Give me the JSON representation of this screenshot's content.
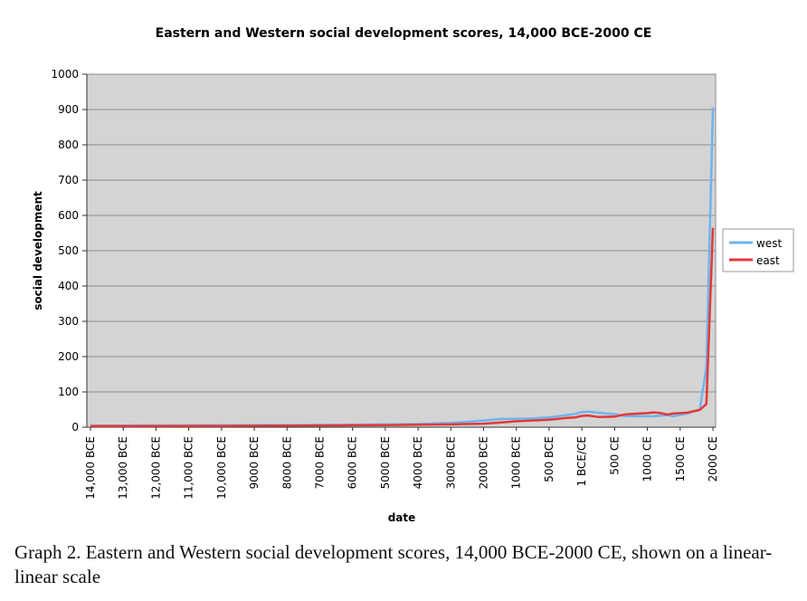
{
  "chart_data": {
    "type": "line",
    "title": "Eastern and Western social development scores, 14,000 BCE-2000 CE",
    "xlabel": "date",
    "ylabel": "social development",
    "ylim": [
      0,
      1000
    ],
    "yticks": [
      0,
      100,
      200,
      300,
      400,
      500,
      600,
      700,
      800,
      900,
      1000
    ],
    "grid": true,
    "legend_position": "right",
    "x_categories": [
      "14,000 BCE",
      "13,000 BCE",
      "12,000 BCE",
      "11,000 BCE",
      "10,000 BCE",
      "9000 BCE",
      "8000 BCE",
      "7000 BCE",
      "6000 BCE",
      "5000 BCE",
      "4000 BCE",
      "3000 BCE",
      "2000 BCE",
      "1000 BCE",
      "500 BCE",
      "1 BCE/CE",
      "500 CE",
      "1000 CE",
      "1500 CE",
      "2000 CE"
    ],
    "x_years": [
      -14000,
      -13000,
      -12000,
      -11000,
      -10000,
      -9000,
      -8000,
      -7000,
      -6000,
      -5000,
      -4000,
      -3000,
      -2000,
      -1000,
      -500,
      0,
      500,
      1000,
      1500,
      2000
    ],
    "series": [
      {
        "name": "west",
        "color": "#6fb4ec",
        "points": [
          [
            -14000,
            4.4
          ],
          [
            -13000,
            4.4
          ],
          [
            -12000,
            4.9
          ],
          [
            -11000,
            5.2
          ],
          [
            -10000,
            5.4
          ],
          [
            -9000,
            5.7
          ],
          [
            -8000,
            6
          ],
          [
            -7000,
            6.5
          ],
          [
            -6000,
            7
          ],
          [
            -5000,
            8
          ],
          [
            -4000,
            9
          ],
          [
            -3000,
            12
          ],
          [
            -2000,
            19
          ],
          [
            -1500,
            23
          ],
          [
            -1000,
            24
          ],
          [
            -750,
            25
          ],
          [
            -500,
            28
          ],
          [
            -250,
            34
          ],
          [
            -100,
            38
          ],
          [
            0,
            43
          ],
          [
            100,
            44
          ],
          [
            250,
            41
          ],
          [
            500,
            37
          ],
          [
            600,
            33
          ],
          [
            700,
            31
          ],
          [
            1000,
            31
          ],
          [
            1100,
            31
          ],
          [
            1200,
            33
          ],
          [
            1300,
            34
          ],
          [
            1400,
            31
          ],
          [
            1500,
            35
          ],
          [
            1600,
            38
          ],
          [
            1700,
            44
          ],
          [
            1800,
            50
          ],
          [
            1900,
            170
          ],
          [
            2000,
            906
          ]
        ]
      },
      {
        "name": "east",
        "color": "#e33838",
        "points": [
          [
            -14000,
            3.4
          ],
          [
            -13000,
            3.4
          ],
          [
            -12000,
            3.4
          ],
          [
            -11000,
            3.5
          ],
          [
            -10000,
            3.7
          ],
          [
            -9000,
            4
          ],
          [
            -8000,
            4.5
          ],
          [
            -7000,
            5
          ],
          [
            -6000,
            5.5
          ],
          [
            -5000,
            6
          ],
          [
            -4000,
            7
          ],
          [
            -3000,
            8
          ],
          [
            -2000,
            10
          ],
          [
            -1500,
            13
          ],
          [
            -1000,
            17
          ],
          [
            -750,
            19
          ],
          [
            -500,
            21
          ],
          [
            -250,
            26
          ],
          [
            -100,
            28
          ],
          [
            0,
            32
          ],
          [
            100,
            33
          ],
          [
            250,
            29
          ],
          [
            500,
            30
          ],
          [
            600,
            34
          ],
          [
            700,
            37
          ],
          [
            1000,
            40
          ],
          [
            1100,
            42
          ],
          [
            1200,
            40
          ],
          [
            1300,
            36
          ],
          [
            1400,
            39
          ],
          [
            1500,
            40
          ],
          [
            1600,
            41
          ],
          [
            1700,
            45
          ],
          [
            1800,
            49
          ],
          [
            1900,
            66
          ],
          [
            2000,
            565
          ]
        ]
      }
    ]
  },
  "caption": "Graph 2.  Eastern and Western social development scores, 14,000 BCE-2000 CE, shown on a linear-linear scale"
}
